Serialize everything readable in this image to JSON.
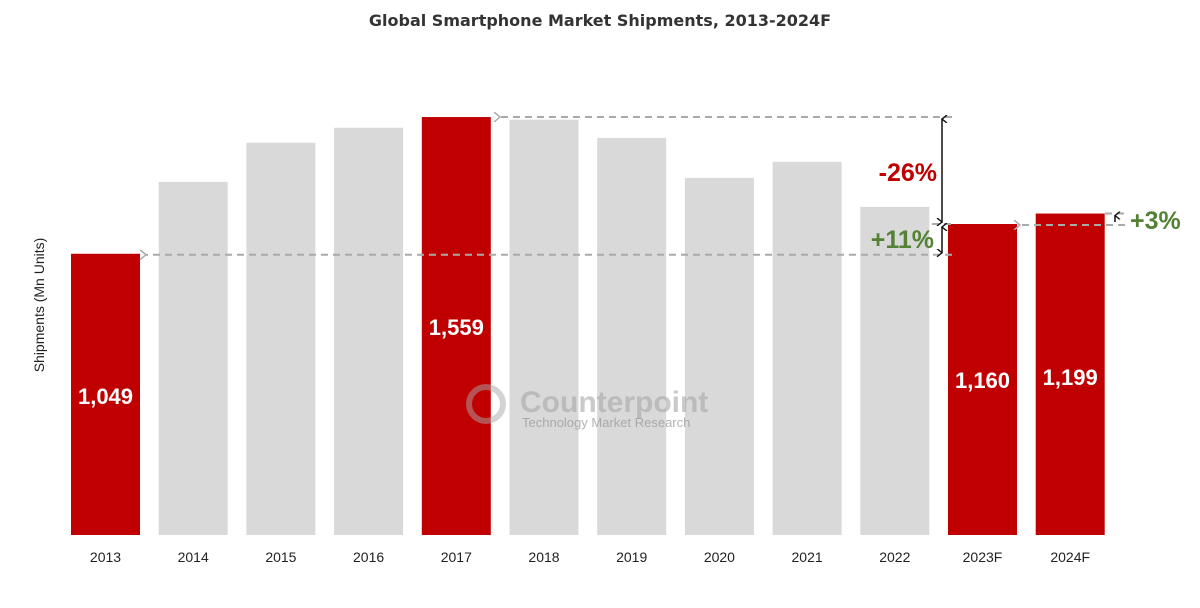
{
  "chart_data": {
    "type": "bar",
    "title": "Global Smartphone Market Shipments, 2013-2024F",
    "xlabel": "",
    "ylabel": "Shipments (Mn Units)",
    "categories": [
      "2013",
      "2014",
      "2015",
      "2016",
      "2017",
      "2018",
      "2019",
      "2020",
      "2021",
      "2022",
      "2023F",
      "2024F"
    ],
    "values": [
      1049,
      1317,
      1463,
      1519,
      1559,
      1549,
      1481,
      1332,
      1392,
      1224,
      1160,
      1199
    ],
    "data_labels": {
      "0": "1,049",
      "4": "1,559",
      "10": "1,160",
      "11": "1,199"
    },
    "highlighted": [
      0,
      4,
      10,
      11
    ],
    "ylim": [
      0,
      1650
    ],
    "grid": false,
    "colors": {
      "highlight": "#c00000",
      "default": "#d9d9d9",
      "negative_text": "#c00000",
      "positive_text": "#548235"
    },
    "annotations": [
      {
        "text": "-26%",
        "from": "2017",
        "to": "2023F",
        "color": "#c00000"
      },
      {
        "text": "+11%",
        "from": "2013",
        "to": "2023F",
        "color": "#548235"
      },
      {
        "text": "+3%",
        "from": "2023F",
        "to": "2024F",
        "color": "#548235"
      }
    ]
  },
  "watermark": {
    "brand": "Counterpoint",
    "tagline": "Technology Market Research"
  }
}
